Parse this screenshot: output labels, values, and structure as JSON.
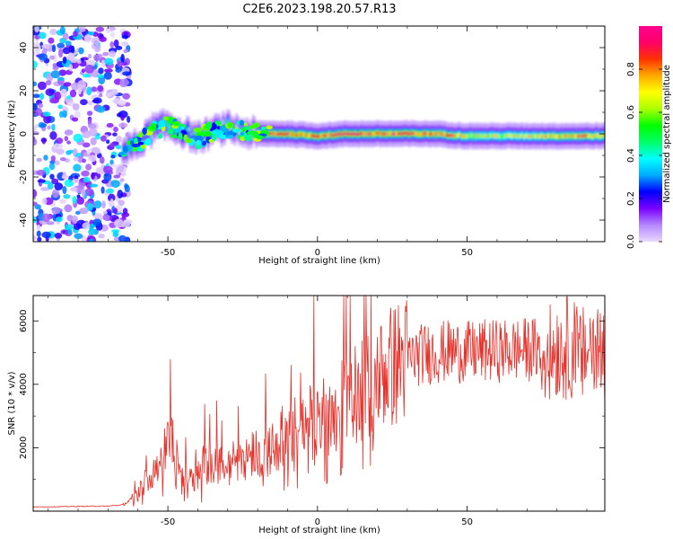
{
  "figure": {
    "title": "C2E6.2023.198.20.57.R13"
  },
  "chart_data": [
    {
      "type": "heatmap",
      "title": "C2E6.2023.198.20.57.R13",
      "xlabel": "Height of straight line (km)",
      "ylabel": "Frequency (Hz)",
      "xlim": [
        -95,
        96
      ],
      "ylim": [
        -50,
        50
      ],
      "xticks": [
        -50,
        0,
        50
      ],
      "yticks": [
        -40,
        -20,
        0,
        20,
        40
      ],
      "colorbar": {
        "label": "Normalized spectral amplitude",
        "range": [
          0.0,
          1.0
        ],
        "ticks": [
          0.0,
          0.2,
          0.4,
          0.6,
          0.8
        ],
        "colormap": [
          "#e8d8ff",
          "#b488ff",
          "#7a00ff",
          "#0000ff",
          "#00aaff",
          "#00ffff",
          "#00ff66",
          "#00ff00",
          "#aaff00",
          "#ffff00",
          "#ffaa00",
          "#ff3300",
          "#ff0066",
          "#ff0090"
        ]
      },
      "ridge": {
        "x": [
          -65,
          -60,
          -55,
          -50,
          -45,
          -40,
          -35,
          -30,
          -25,
          -20,
          -10,
          0,
          10,
          20,
          30,
          40,
          50,
          60,
          70,
          80,
          90,
          96
        ],
        "freq_hz": [
          -8,
          -5,
          2,
          4,
          1,
          -2,
          1,
          3,
          1,
          0,
          0,
          -1,
          0,
          0,
          0,
          0,
          -1,
          -1,
          -1,
          -1,
          -1,
          -1
        ],
        "peak_amplitude": [
          0.55,
          0.6,
          0.55,
          0.6,
          0.45,
          0.5,
          0.55,
          0.6,
          0.65,
          0.75,
          0.95,
          0.9,
          0.95,
          0.95,
          0.95,
          0.85,
          0.75,
          0.7,
          0.7,
          0.8,
          0.8,
          0.75
        ]
      },
      "noise_region_x": [
        -95,
        -65
      ]
    },
    {
      "type": "line",
      "title": "",
      "xlabel": "Height of straight line (km)",
      "ylabel": "SNR (10 * v/v)",
      "xlim": [
        -95,
        96
      ],
      "ylim": [
        0,
        6800
      ],
      "xticks": [
        -50,
        0,
        50
      ],
      "yticks": [
        2000,
        4000,
        6000
      ],
      "series": [
        {
          "color": "#e8302a",
          "x": [
            -95,
            -80,
            -70,
            -65,
            -60,
            -58,
            -55,
            -52,
            -50,
            -48,
            -46,
            -45,
            -43,
            -40,
            -38,
            -35,
            -32,
            -30,
            -28,
            -25,
            -22,
            -20,
            -18,
            -15,
            -12,
            -10,
            -7,
            -5,
            -3,
            0,
            2,
            5,
            8,
            10,
            12,
            15,
            18,
            20,
            22,
            25,
            30,
            35,
            40,
            45,
            50,
            55,
            60,
            65,
            70,
            74,
            76,
            78,
            80,
            82,
            84,
            86,
            88,
            90,
            92,
            94,
            96
          ],
          "y": [
            130,
            150,
            160,
            200,
            500,
            900,
            1300,
            1700,
            2100,
            2300,
            1500,
            900,
            1200,
            1100,
            1500,
            1400,
            1500,
            1300,
            1600,
            1700,
            1800,
            1900,
            1700,
            2000,
            2300,
            2400,
            2600,
            2700,
            2800,
            2900,
            3000,
            3100,
            3300,
            3400,
            3600,
            3800,
            4000,
            4200,
            4400,
            4600,
            4800,
            4950,
            5000,
            5050,
            5000,
            5050,
            5050,
            5100,
            5100,
            5100,
            4900,
            5000,
            5200,
            5100,
            5200,
            5100,
            4800,
            5100,
            5300,
            5100,
            4900
          ],
          "jitter": 0.2
        }
      ]
    }
  ]
}
